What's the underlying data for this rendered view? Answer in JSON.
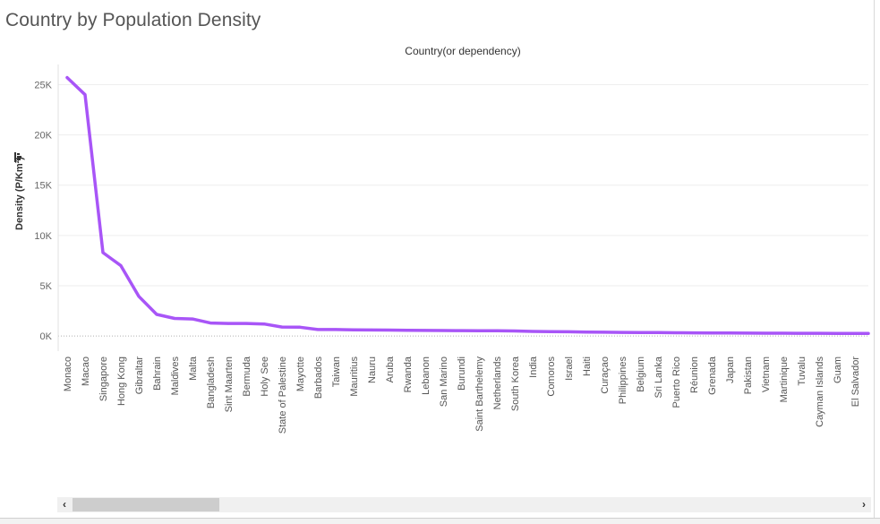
{
  "title": "Country by Population Density",
  "chart_data": {
    "type": "line",
    "title": "Country by Population Density",
    "xlabel": "Country(or dependency)",
    "ylabel": "Density (P/Km²)",
    "ylim": [
      -1500,
      27000
    ],
    "yticks": [
      0,
      5000,
      10000,
      15000,
      20000,
      25000
    ],
    "ytick_labels": [
      "0K",
      "5K",
      "10K",
      "15K",
      "20K",
      "25K"
    ],
    "grid": true,
    "line_color": "#a855f7",
    "categories": [
      "Monaco",
      "Macao",
      "Singapore",
      "Hong Kong",
      "Gibraltar",
      "Bahrain",
      "Maldives",
      "Malta",
      "Bangladesh",
      "Sint Maarten",
      "Bermuda",
      "Holy See",
      "State of Palestine",
      "Mayotte",
      "Barbados",
      "Taiwan",
      "Mauritius",
      "Nauru",
      "Aruba",
      "Rwanda",
      "Lebanon",
      "San Marino",
      "Burundi",
      "Saint Barthelemy",
      "Netherlands",
      "South Korea",
      "India",
      "Comoros",
      "Israel",
      "Haiti",
      "Curaçao",
      "Philippines",
      "Belgium",
      "Sri Lanka",
      "Puerto Rico",
      "Réunion",
      "Grenada",
      "Japan",
      "Pakistan",
      "Vietnam",
      "Martinique",
      "Tuvalu",
      "Cayman Islands",
      "Guam",
      "El Salvador"
    ],
    "values": [
      25700,
      24000,
      8300,
      7000,
      3950,
      2150,
      1750,
      1700,
      1300,
      1250,
      1250,
      1200,
      900,
      880,
      650,
      650,
      620,
      600,
      590,
      570,
      560,
      550,
      540,
      530,
      520,
      500,
      460,
      440,
      420,
      400,
      380,
      360,
      350,
      340,
      330,
      320,
      310,
      300,
      290,
      285,
      280,
      275,
      270,
      265,
      260
    ]
  }
}
